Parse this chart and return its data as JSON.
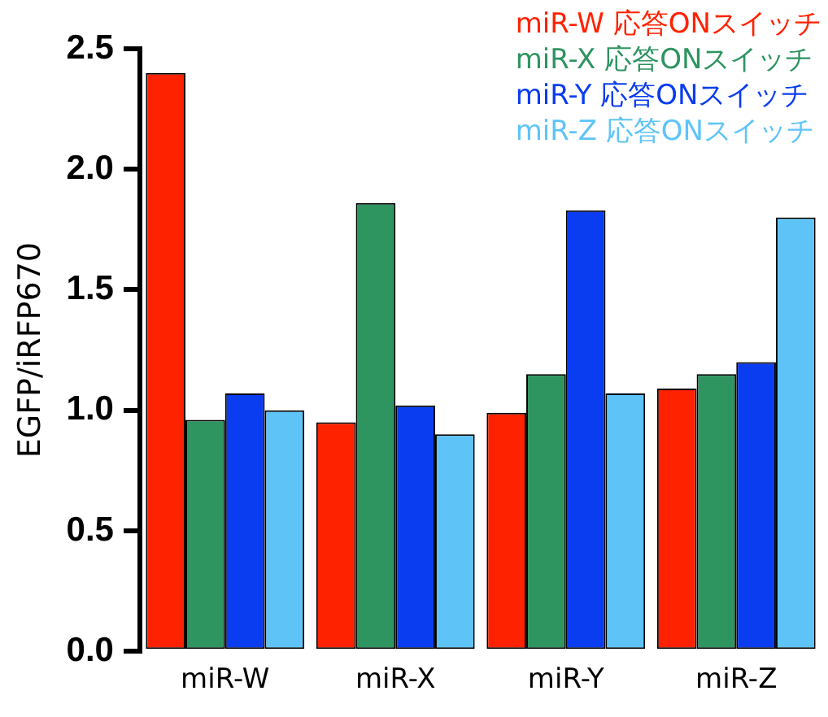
{
  "chart_data": {
    "type": "bar",
    "ylabel": "EGFP/iRFP670",
    "categories": [
      "miR-W",
      "miR-X",
      "miR-Y",
      "miR-Z"
    ],
    "series": [
      {
        "name": "miR-W 応答ONスイッチ",
        "color": "#ff2200",
        "values": [
          2.4,
          0.95,
          0.99,
          1.09
        ]
      },
      {
        "name": "miR-X 応答ONスイッチ",
        "color": "#2e9460",
        "values": [
          0.96,
          1.86,
          1.15,
          1.15
        ]
      },
      {
        "name": "miR-Y 応答ONスイッチ",
        "color": "#0a3cf0",
        "values": [
          1.07,
          1.02,
          1.83,
          1.2
        ]
      },
      {
        "name": "miR-Z 応答ONスイッチ",
        "color": "#5ec4f8",
        "values": [
          1.0,
          0.9,
          1.07,
          1.8
        ]
      }
    ],
    "ylim": [
      0,
      2.5
    ],
    "yticks": [
      {
        "value": 0,
        "label": "0.0"
      },
      0.5,
      {
        "value": 1,
        "label": "1.0"
      },
      1.5,
      {
        "value": 2,
        "label": "2.0"
      },
      2.5
    ],
    "legend": "top right"
  }
}
